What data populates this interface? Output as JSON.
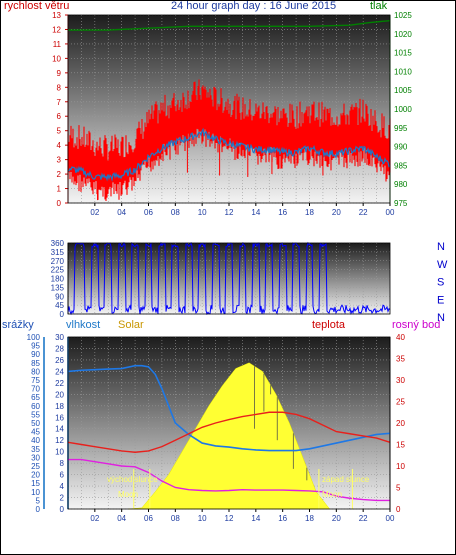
{
  "header": {
    "wind_label": "rychlost větru",
    "title": "24 hour graph day : 16 June 2015",
    "pressure_label": "tlak"
  },
  "lower_header": {
    "rain_label": "srážky",
    "humidity_label": "vlhkost",
    "solar_label": "Solar",
    "temp_label": "teplota",
    "dew_label": "rosný bod"
  },
  "annotations": {
    "sunrise": "východ slunce",
    "sunset": "západ slunce",
    "moon_left": "Moon",
    "moon_right": "Moon"
  },
  "colors": {
    "wind": "#ff0000",
    "wind_avg": "#1e78c8",
    "pressure": "#008000",
    "direction": "#0000ff",
    "humidity": "#1e78e6",
    "temperature": "#e8201c",
    "dewpoint": "#e020e0",
    "solar": "#ffff33",
    "rain_axis": "#1e78c8",
    "humidity_axis": "#1e78c8",
    "solar_axis": "#c89600",
    "right_axis": "#cc0000"
  },
  "chart_data": [
    {
      "type": "line",
      "name": "wind_pressure",
      "x_ticks": [
        "02",
        "04",
        "06",
        "08",
        "10",
        "12",
        "14",
        "16",
        "18",
        "20",
        "22",
        "00"
      ],
      "y_left": {
        "label": "rychlost větru",
        "ylim": [
          0,
          13
        ],
        "ticks": [
          0,
          1,
          2,
          3,
          4,
          5,
          6,
          7,
          8,
          9,
          10,
          11,
          12,
          13
        ]
      },
      "y_right": {
        "label": "tlak",
        "ylim": [
          975,
          1025
        ],
        "ticks": [
          975,
          980,
          985,
          990,
          995,
          1000,
          1005,
          1010,
          1015,
          1020,
          1025
        ]
      },
      "series": [
        {
          "name": "",
          "axis": "left",
          "x": [
            0,
            1,
            2,
            3,
            4,
            5,
            6,
            7,
            8,
            9,
            10,
            11,
            12,
            13,
            14,
            15,
            16,
            17,
            18,
            19,
            20,
            21,
            22,
            23,
            24
          ],
          "values": [
            3.2,
            3.0,
            2.5,
            2.3,
            2.4,
            3.0,
            4.2,
            5.0,
            5.4,
            5.9,
            6.3,
            5.7,
            5.4,
            5.0,
            4.8,
            4.8,
            4.5,
            4.5,
            4.9,
            4.6,
            4.5,
            4.6,
            4.9,
            4.1,
            3.6
          ]
        },
        {
          "name": "",
          "axis": "left",
          "x": [
            0,
            1,
            2,
            3,
            4,
            5,
            6,
            7,
            8,
            9,
            10,
            11,
            12,
            13,
            14,
            15,
            16,
            17,
            18,
            19,
            20,
            21,
            22,
            23,
            24
          ],
          "values": [
            2.4,
            2.2,
            1.8,
            1.8,
            1.9,
            2.3,
            3.2,
            3.8,
            4.2,
            4.5,
            4.9,
            4.4,
            4.1,
            3.9,
            3.7,
            3.7,
            3.5,
            3.5,
            3.8,
            3.5,
            3.4,
            3.6,
            3.8,
            3.2,
            2.7
          ]
        },
        {
          "name": "",
          "axis": "right",
          "x": [
            0,
            3,
            6,
            9,
            12,
            15,
            18,
            21,
            22.5,
            24
          ],
          "values": [
            1021,
            1021,
            1021.5,
            1022,
            1022,
            1022,
            1022,
            1022.3,
            1023,
            1023.5
          ]
        }
      ]
    },
    {
      "type": "line",
      "name": "wind_direction",
      "x_ticks": [
        "02",
        "04",
        "06",
        "08",
        "10",
        "12",
        "14",
        "16",
        "18",
        "20",
        "22",
        "00"
      ],
      "y_left": {
        "ylim": [
          0,
          360
        ],
        "ticks": [
          0,
          45,
          90,
          135,
          180,
          225,
          270,
          315,
          360
        ]
      },
      "y_right": {
        "ticks": [
          "N",
          "E",
          "S",
          "W",
          "N"
        ]
      },
      "series": [
        {
          "name": "",
          "x": [
            0,
            1,
            1.5,
            2,
            2.5,
            3,
            3.5,
            4,
            4.5,
            5,
            5.5,
            6,
            6.5,
            7,
            7.5,
            8,
            8.5,
            9,
            9.5,
            10,
            10.5,
            11,
            11.5,
            12,
            12.5,
            13,
            13.5,
            14,
            14.5,
            15,
            15.5,
            16,
            16.5,
            17,
            17.5,
            18,
            18.5,
            19,
            19.5,
            20,
            20.5,
            21,
            21.5,
            22,
            22.5,
            23,
            23.5,
            24
          ],
          "values": [
            20,
            350,
            15,
            340,
            30,
            355,
            10,
            345,
            20,
            350,
            25,
            340,
            15,
            330,
            20,
            345,
            25,
            350,
            30,
            340,
            20,
            355,
            15,
            345,
            25,
            340,
            30,
            350,
            20,
            345,
            10,
            355,
            25,
            350,
            30,
            340,
            20,
            345,
            30,
            15,
            40,
            25,
            20,
            30,
            25,
            20,
            15,
            20
          ]
        }
      ]
    },
    {
      "type": "area",
      "name": "rain_humidity_solar_temp",
      "x_ticks": [
        "02",
        "04",
        "06",
        "08",
        "10",
        "12",
        "14",
        "16",
        "18",
        "20",
        "22",
        "00"
      ],
      "axes": {
        "rain": {
          "label": "srážky",
          "ylim": [
            0,
            100
          ],
          "ticks": [
            0,
            5,
            10,
            15,
            20,
            25,
            30,
            35,
            40,
            45,
            50,
            55,
            60,
            65,
            70,
            75,
            80,
            85,
            90,
            95,
            100
          ]
        },
        "humidity": {
          "label": "vlhkost",
          "ylim": [
            0,
            30
          ],
          "ticks": [
            0,
            2,
            4,
            6,
            8,
            10,
            12,
            14,
            16,
            18,
            20,
            22,
            24,
            26,
            28,
            30
          ]
        },
        "temperature": {
          "label": "teplota",
          "ylim": [
            0,
            40
          ],
          "ticks": [
            0,
            5,
            10,
            15,
            20,
            25,
            30,
            35,
            40
          ]
        }
      },
      "series": [
        {
          "name": "",
          "axis": "humidity",
          "x": [
            0,
            1,
            2,
            3,
            4,
            5,
            5.5,
            6,
            6.5,
            7,
            7.5,
            8,
            9,
            10,
            11,
            12,
            13,
            14,
            15,
            16,
            17,
            18,
            19,
            20,
            21,
            22,
            23,
            24
          ],
          "values": [
            24,
            24.2,
            24.3,
            24.4,
            24.5,
            25,
            25,
            24.8,
            23.5,
            21,
            18,
            15,
            13,
            11.5,
            11,
            10.8,
            10.5,
            10.3,
            10.2,
            10.2,
            10.2,
            10.5,
            11,
            11.5,
            12,
            12.5,
            13,
            13.2
          ]
        },
        {
          "name": "",
          "axis": "temperature",
          "x": [
            0,
            1,
            2,
            3,
            4,
            5,
            6,
            7,
            8,
            9,
            10,
            11,
            12,
            13,
            14,
            15,
            16,
            17,
            18,
            19,
            20,
            21,
            22,
            23,
            24
          ],
          "values": [
            15.5,
            15,
            14.5,
            14,
            13.5,
            13.2,
            13.5,
            14.5,
            16,
            17.5,
            19,
            20,
            20.8,
            21.5,
            22,
            22.5,
            22.5,
            22,
            21,
            19.5,
            18,
            17.5,
            17,
            16.5,
            15.5
          ]
        },
        {
          "name": "",
          "axis": "temperature",
          "x": [
            0,
            1,
            2,
            3,
            4,
            5,
            6,
            7,
            8,
            9,
            10,
            11,
            12,
            13,
            14,
            15,
            16,
            17,
            18,
            19,
            20,
            21,
            22,
            23,
            24
          ],
          "values": [
            11.5,
            11.5,
            11,
            10.5,
            10,
            9.8,
            8.5,
            6.5,
            5,
            4.5,
            4.3,
            4.2,
            4.3,
            4.5,
            4.4,
            4.4,
            4.4,
            4.3,
            4.2,
            4,
            3,
            2.5,
            2.2,
            2,
            2
          ]
        },
        {
          "name": "",
          "axis": "humidity",
          "x": [
            4.5,
            5.5,
            6.5,
            7.5,
            8.5,
            9.5,
            10.5,
            11.5,
            12.5,
            13.5,
            14.5,
            15.5,
            16.5,
            17.5,
            18.5,
            19.5
          ],
          "values": [
            0,
            0.2,
            3,
            6,
            10,
            14,
            18,
            21.5,
            24.5,
            25.5,
            24,
            20,
            15,
            9,
            3,
            0
          ]
        }
      ]
    }
  ]
}
